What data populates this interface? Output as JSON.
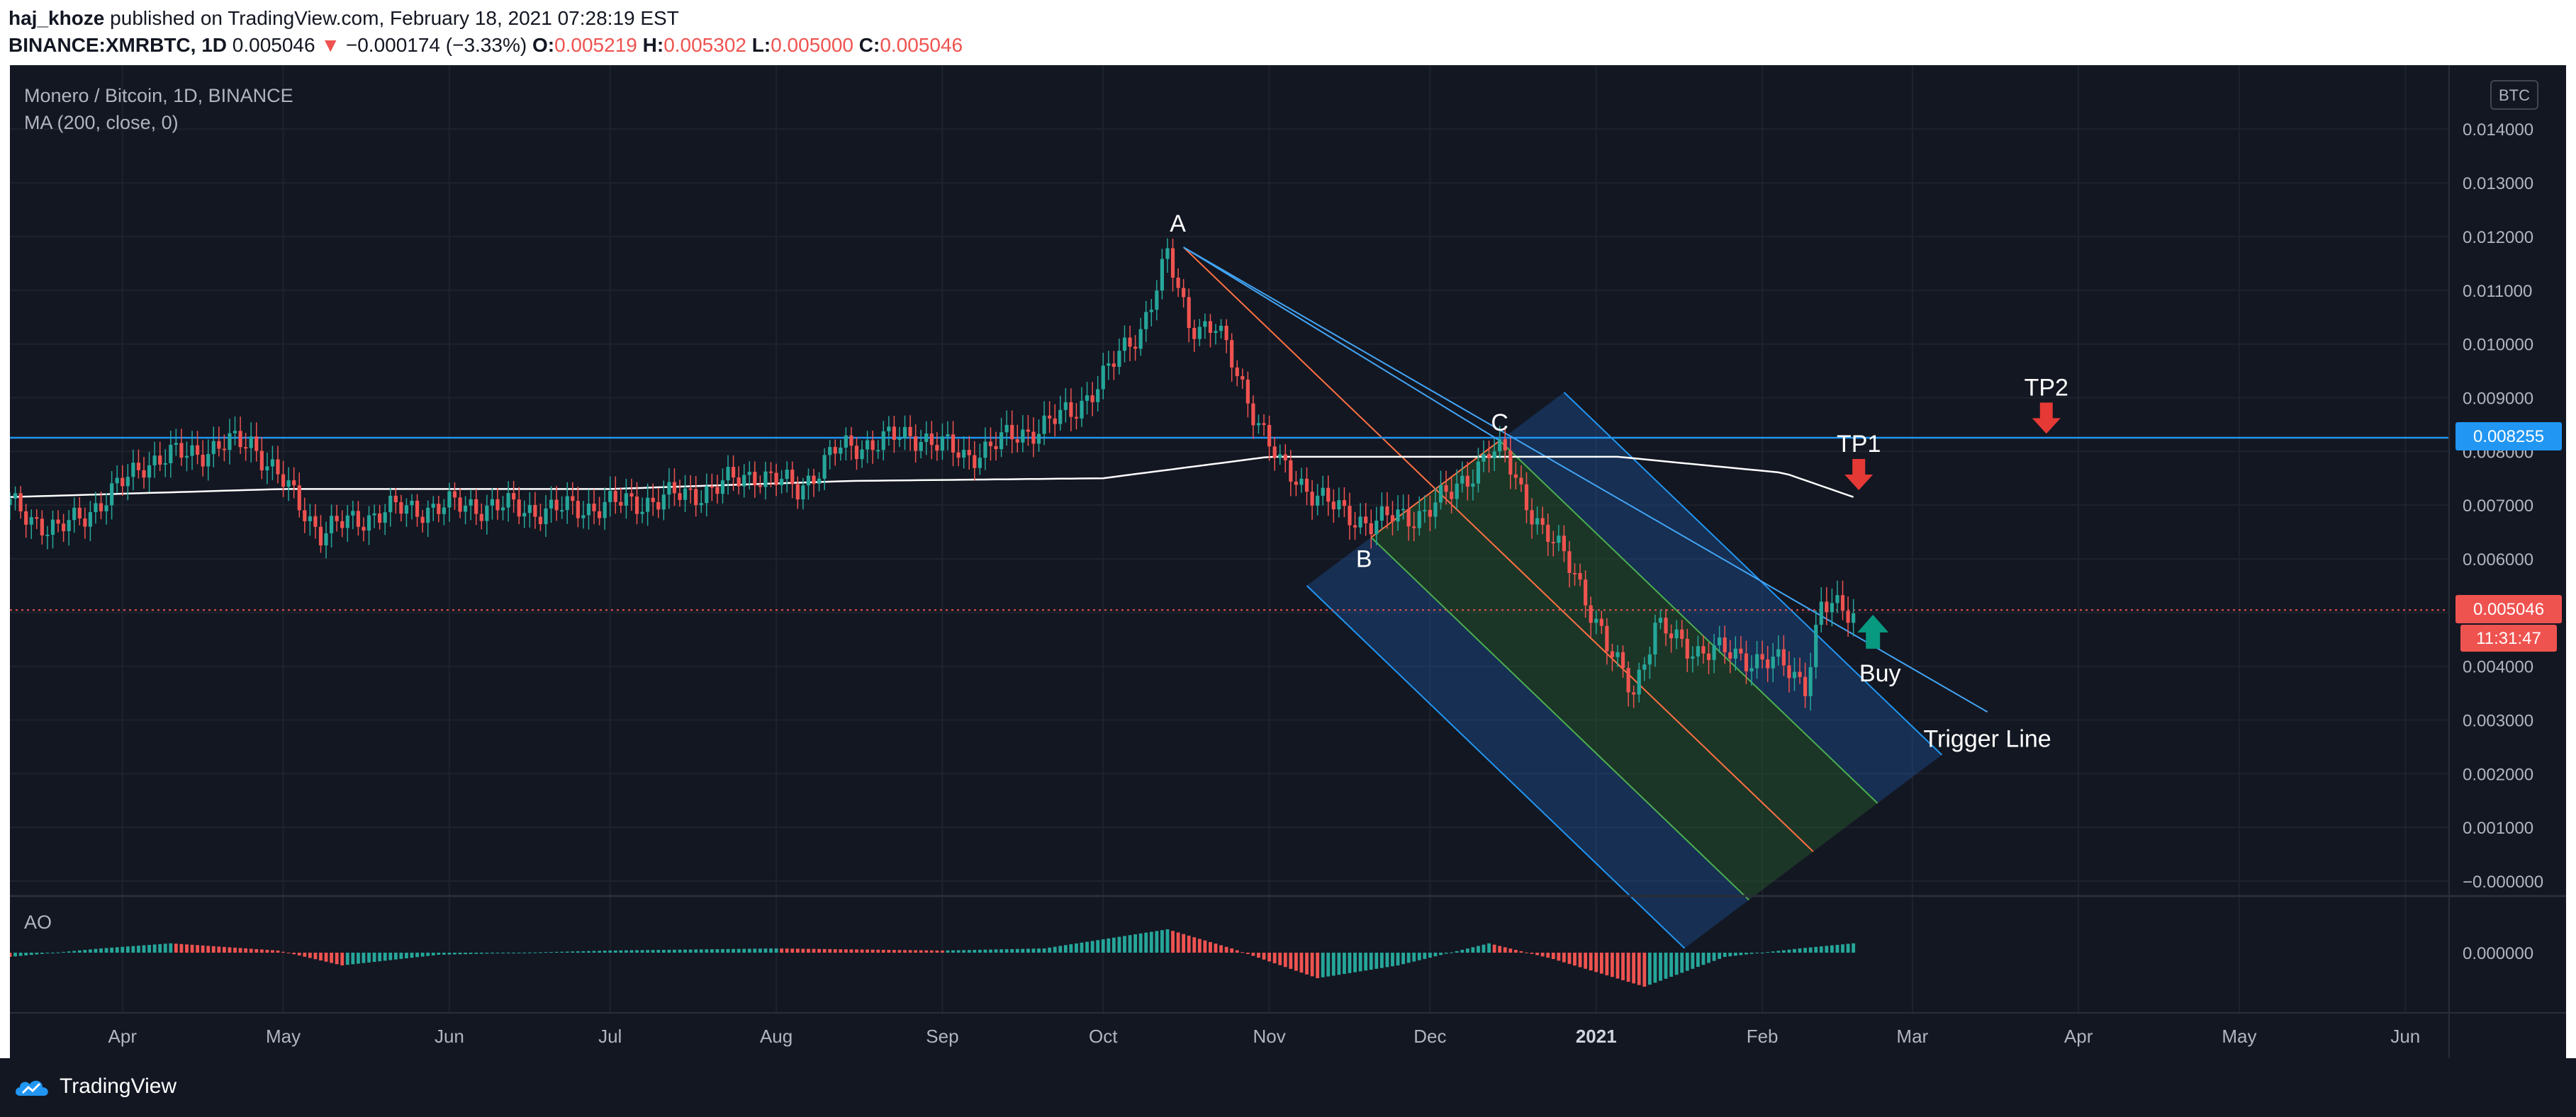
{
  "header": {
    "author": "haj_khoze",
    "published_text": "published on TradingView.com, February 18, 2021 07:28:19 EST",
    "symbol": "BINANCE:XMRBTC, 1D",
    "last": "0.005046",
    "arrow": "▼",
    "change": "−0.000174 (−3.33%)",
    "open_label": "O:",
    "open": "0.005219",
    "high_label": "H:",
    "high": "0.005302",
    "low_label": "L:",
    "low": "0.005000",
    "close_label": "C:",
    "close": "0.005046"
  },
  "legend": {
    "title": "Monero / Bitcoin, 1D, BINANCE",
    "ma": "MA (200, close, 0)",
    "ao": "AO"
  },
  "currency_badge": "BTC",
  "footer": {
    "brand": "TradingView"
  },
  "colors": {
    "background": "#131722",
    "up": "#26a69a",
    "down": "#ef5350",
    "resistance": "#2196f3",
    "ma": "#ffffff",
    "channel_fill": "#1f6fd0",
    "arrow_up": "#089981",
    "arrow_down": "#e53935"
  },
  "chart_data": {
    "type": "candlestick",
    "x_axis_labels": [
      "Apr",
      "May",
      "Jun",
      "Jul",
      "Aug",
      "Sep",
      "Oct",
      "Nov",
      "Dec",
      "2021",
      "Feb",
      "Mar",
      "Apr",
      "May",
      "Jun"
    ],
    "y_ticks": [
      "0.014000",
      "0.013000",
      "0.012000",
      "0.011000",
      "0.010000",
      "0.009000",
      "0.008000",
      "0.007000",
      "0.006000",
      "0.005000",
      "0.004000",
      "0.003000",
      "0.002000",
      "0.001000",
      "−0.000000"
    ],
    "ylim": [
      0,
      0.0143
    ],
    "price_path": [
      [
        "2020-03-11",
        0.007
      ],
      [
        "2020-03-20",
        0.0065
      ],
      [
        "2020-03-30",
        0.0072
      ],
      [
        "2020-04-05",
        0.0078
      ],
      [
        "2020-04-15",
        0.008
      ],
      [
        "2020-04-25",
        0.0082
      ],
      [
        "2020-05-01",
        0.0074
      ],
      [
        "2020-05-08",
        0.0065
      ],
      [
        "2020-05-20",
        0.0069
      ],
      [
        "2020-06-05",
        0.007
      ],
      [
        "2020-06-20",
        0.0069
      ],
      [
        "2020-07-10",
        0.0071
      ],
      [
        "2020-07-20",
        0.0073
      ],
      [
        "2020-07-28",
        0.0076
      ],
      [
        "2020-08-05",
        0.0073
      ],
      [
        "2020-08-12",
        0.008
      ],
      [
        "2020-08-20",
        0.0082
      ],
      [
        "2020-08-28",
        0.0083
      ],
      [
        "2020-09-05",
        0.0079
      ],
      [
        "2020-09-15",
        0.0083
      ],
      [
        "2020-09-25",
        0.0087
      ],
      [
        "2020-10-02",
        0.0095
      ],
      [
        "2020-10-08",
        0.0103
      ],
      [
        "2020-10-13",
        0.0116
      ],
      [
        "2020-10-17",
        0.0104
      ],
      [
        "2020-10-22",
        0.0103
      ],
      [
        "2020-10-28",
        0.009
      ],
      [
        "2020-11-03",
        0.0077
      ],
      [
        "2020-11-10",
        0.0072
      ],
      [
        "2020-11-15",
        0.0068
      ],
      [
        "2020-11-20",
        0.0067
      ],
      [
        "2020-11-28",
        0.0068
      ],
      [
        "2020-12-05",
        0.0072
      ],
      [
        "2020-12-12",
        0.008
      ],
      [
        "2020-12-15",
        0.0079
      ],
      [
        "2020-12-22",
        0.0065
      ],
      [
        "2020-12-28",
        0.0058
      ],
      [
        "2021-01-03",
        0.0043
      ],
      [
        "2021-01-08",
        0.0036
      ],
      [
        "2021-01-12",
        0.0047
      ],
      [
        "2021-01-20",
        0.0043
      ],
      [
        "2021-01-28",
        0.0042
      ],
      [
        "2021-02-05",
        0.004
      ],
      [
        "2021-02-09",
        0.0037
      ],
      [
        "2021-02-12",
        0.0051
      ],
      [
        "2021-02-18",
        0.005
      ]
    ],
    "ma_path": [
      [
        "2020-03-11",
        0.00715
      ],
      [
        "2020-05-01",
        0.0073
      ],
      [
        "2020-07-01",
        0.0073
      ],
      [
        "2020-08-15",
        0.00745
      ],
      [
        "2020-10-01",
        0.0075
      ],
      [
        "2020-11-01",
        0.0079
      ],
      [
        "2020-12-05",
        0.0079
      ],
      [
        "2021-01-05",
        0.0079
      ],
      [
        "2021-02-05",
        0.0076
      ],
      [
        "2021-02-18",
        0.00715
      ]
    ],
    "ao_path": [
      [
        "2020-03-11",
        -0.1
      ],
      [
        "2020-03-28",
        0.1
      ],
      [
        "2020-04-10",
        0.22
      ],
      [
        "2020-04-30",
        0.05
      ],
      [
        "2020-05-12",
        -0.3
      ],
      [
        "2020-05-30",
        -0.05
      ],
      [
        "2020-07-01",
        0.05
      ],
      [
        "2020-08-01",
        0.1
      ],
      [
        "2020-09-01",
        0.05
      ],
      [
        "2020-09-20",
        0.1
      ],
      [
        "2020-10-13",
        0.55
      ],
      [
        "2020-10-25",
        0.1
      ],
      [
        "2020-11-10",
        -0.6
      ],
      [
        "2020-11-25",
        -0.3
      ],
      [
        "2020-12-12",
        0.22
      ],
      [
        "2020-12-24",
        -0.15
      ],
      [
        "2021-01-10",
        -0.8
      ],
      [
        "2021-01-25",
        -0.1
      ],
      [
        "2021-02-08",
        0.1
      ],
      [
        "2021-02-18",
        0.22
      ]
    ],
    "annotations": [
      {
        "label": "A",
        "date": "2020-10-16",
        "value": 0.0118
      },
      {
        "label": "B",
        "date": "2020-11-20",
        "value": 0.0064
      },
      {
        "label": "C",
        "date": "2020-12-14",
        "value": 0.0082
      },
      {
        "label": "TP1",
        "date": "2021-02-19",
        "value": 0.0072
      },
      {
        "label": "TP2",
        "date": "2021-03-26",
        "value": 0.00825
      },
      {
        "label": "Buy",
        "date": "2021-02-19",
        "value": 0.0043
      },
      {
        "label": "Trigger Line",
        "date": "2021-03-15",
        "value": 0.003
      }
    ],
    "resistance_level": "0.008255",
    "current_price_label": "0.005046",
    "countdown": "11:31:47",
    "ao_tick": "0.000000"
  }
}
